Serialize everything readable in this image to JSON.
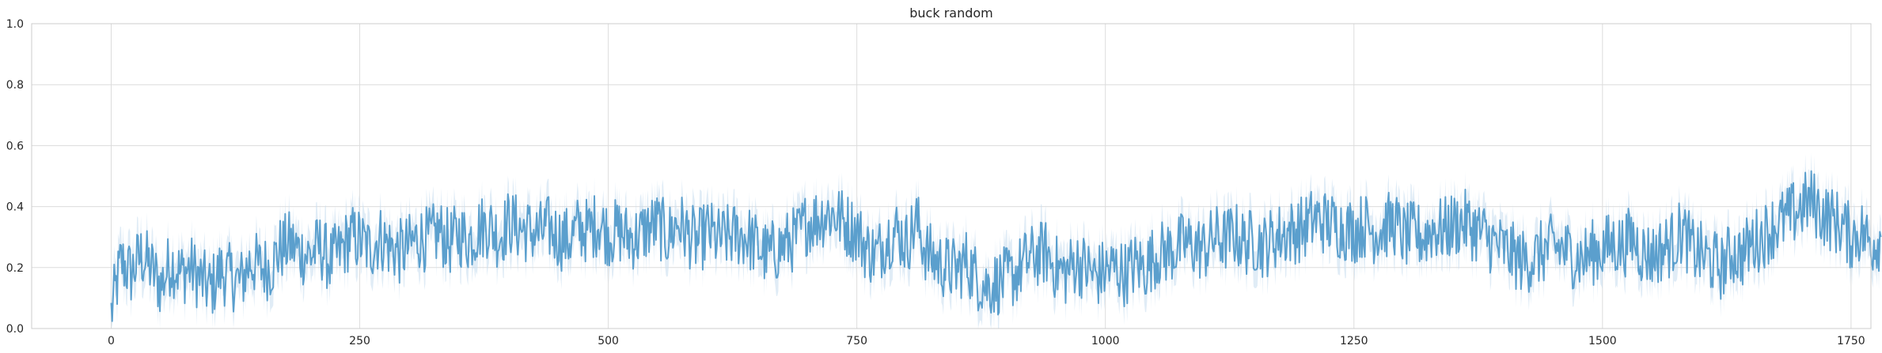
{
  "chart_data": {
    "type": "line",
    "title": "buck random",
    "xlabel": "",
    "ylabel": "",
    "xlim": [
      -80,
      1770
    ],
    "ylim": [
      0,
      1
    ],
    "x_ticks": [
      0,
      250,
      500,
      750,
      1000,
      1250,
      1500,
      1750
    ],
    "y_ticks": [
      0.0,
      0.2,
      0.4,
      0.6,
      0.8,
      1.0
    ],
    "x_tick_labels": [
      "0",
      "250",
      "500",
      "750",
      "1000",
      "1250",
      "1500",
      "1750"
    ],
    "y_tick_labels": [
      "0.0",
      "0.2",
      "0.4",
      "0.6",
      "0.8",
      "1.0"
    ],
    "grid": true,
    "colors": {
      "line": "#5b9fcd",
      "band": "#c6dcef",
      "grid": "#dcdcdc"
    },
    "band_halfwidth": 0.06,
    "series": [
      {
        "x_start": 0,
        "x_step": 10,
        "values": [
          0.05,
          0.22,
          0.18,
          0.24,
          0.2,
          0.14,
          0.22,
          0.18,
          0.2,
          0.16,
          0.13,
          0.19,
          0.17,
          0.15,
          0.22,
          0.2,
          0.2,
          0.26,
          0.28,
          0.25,
          0.24,
          0.27,
          0.22,
          0.25,
          0.3,
          0.29,
          0.26,
          0.3,
          0.27,
          0.25,
          0.27,
          0.3,
          0.29,
          0.32,
          0.28,
          0.31,
          0.29,
          0.33,
          0.34,
          0.3,
          0.35,
          0.33,
          0.32,
          0.31,
          0.33,
          0.3,
          0.29,
          0.33,
          0.32,
          0.35,
          0.31,
          0.32,
          0.3,
          0.3,
          0.33,
          0.34,
          0.3,
          0.35,
          0.31,
          0.28,
          0.32,
          0.29,
          0.3,
          0.31,
          0.3,
          0.27,
          0.24,
          0.26,
          0.28,
          0.3,
          0.35,
          0.36,
          0.38,
          0.37,
          0.34,
          0.32,
          0.26,
          0.24,
          0.3,
          0.32,
          0.28,
          0.35,
          0.25,
          0.22,
          0.2,
          0.19,
          0.22,
          0.17,
          0.14,
          0.15,
          0.16,
          0.18,
          0.22,
          0.24,
          0.25,
          0.2,
          0.18,
          0.22,
          0.2,
          0.17,
          0.19,
          0.2,
          0.18,
          0.21,
          0.2,
          0.24,
          0.25,
          0.26,
          0.28,
          0.27,
          0.26,
          0.3,
          0.29,
          0.31,
          0.28,
          0.29,
          0.27,
          0.3,
          0.31,
          0.32,
          0.33,
          0.36,
          0.35,
          0.34,
          0.33,
          0.32,
          0.34,
          0.32,
          0.33,
          0.35,
          0.3,
          0.31,
          0.3,
          0.33,
          0.32,
          0.34,
          0.35,
          0.33,
          0.31,
          0.28,
          0.26,
          0.24,
          0.22,
          0.23,
          0.25,
          0.27,
          0.26,
          0.24,
          0.23,
          0.25,
          0.26,
          0.28,
          0.27,
          0.3,
          0.25,
          0.24,
          0.26,
          0.28,
          0.32,
          0.26,
          0.24,
          0.22,
          0.2,
          0.25,
          0.24,
          0.28,
          0.3,
          0.33,
          0.35,
          0.37,
          0.4,
          0.42,
          0.38,
          0.36,
          0.34,
          0.3,
          0.32,
          0.28,
          0.3
        ]
      }
    ]
  }
}
